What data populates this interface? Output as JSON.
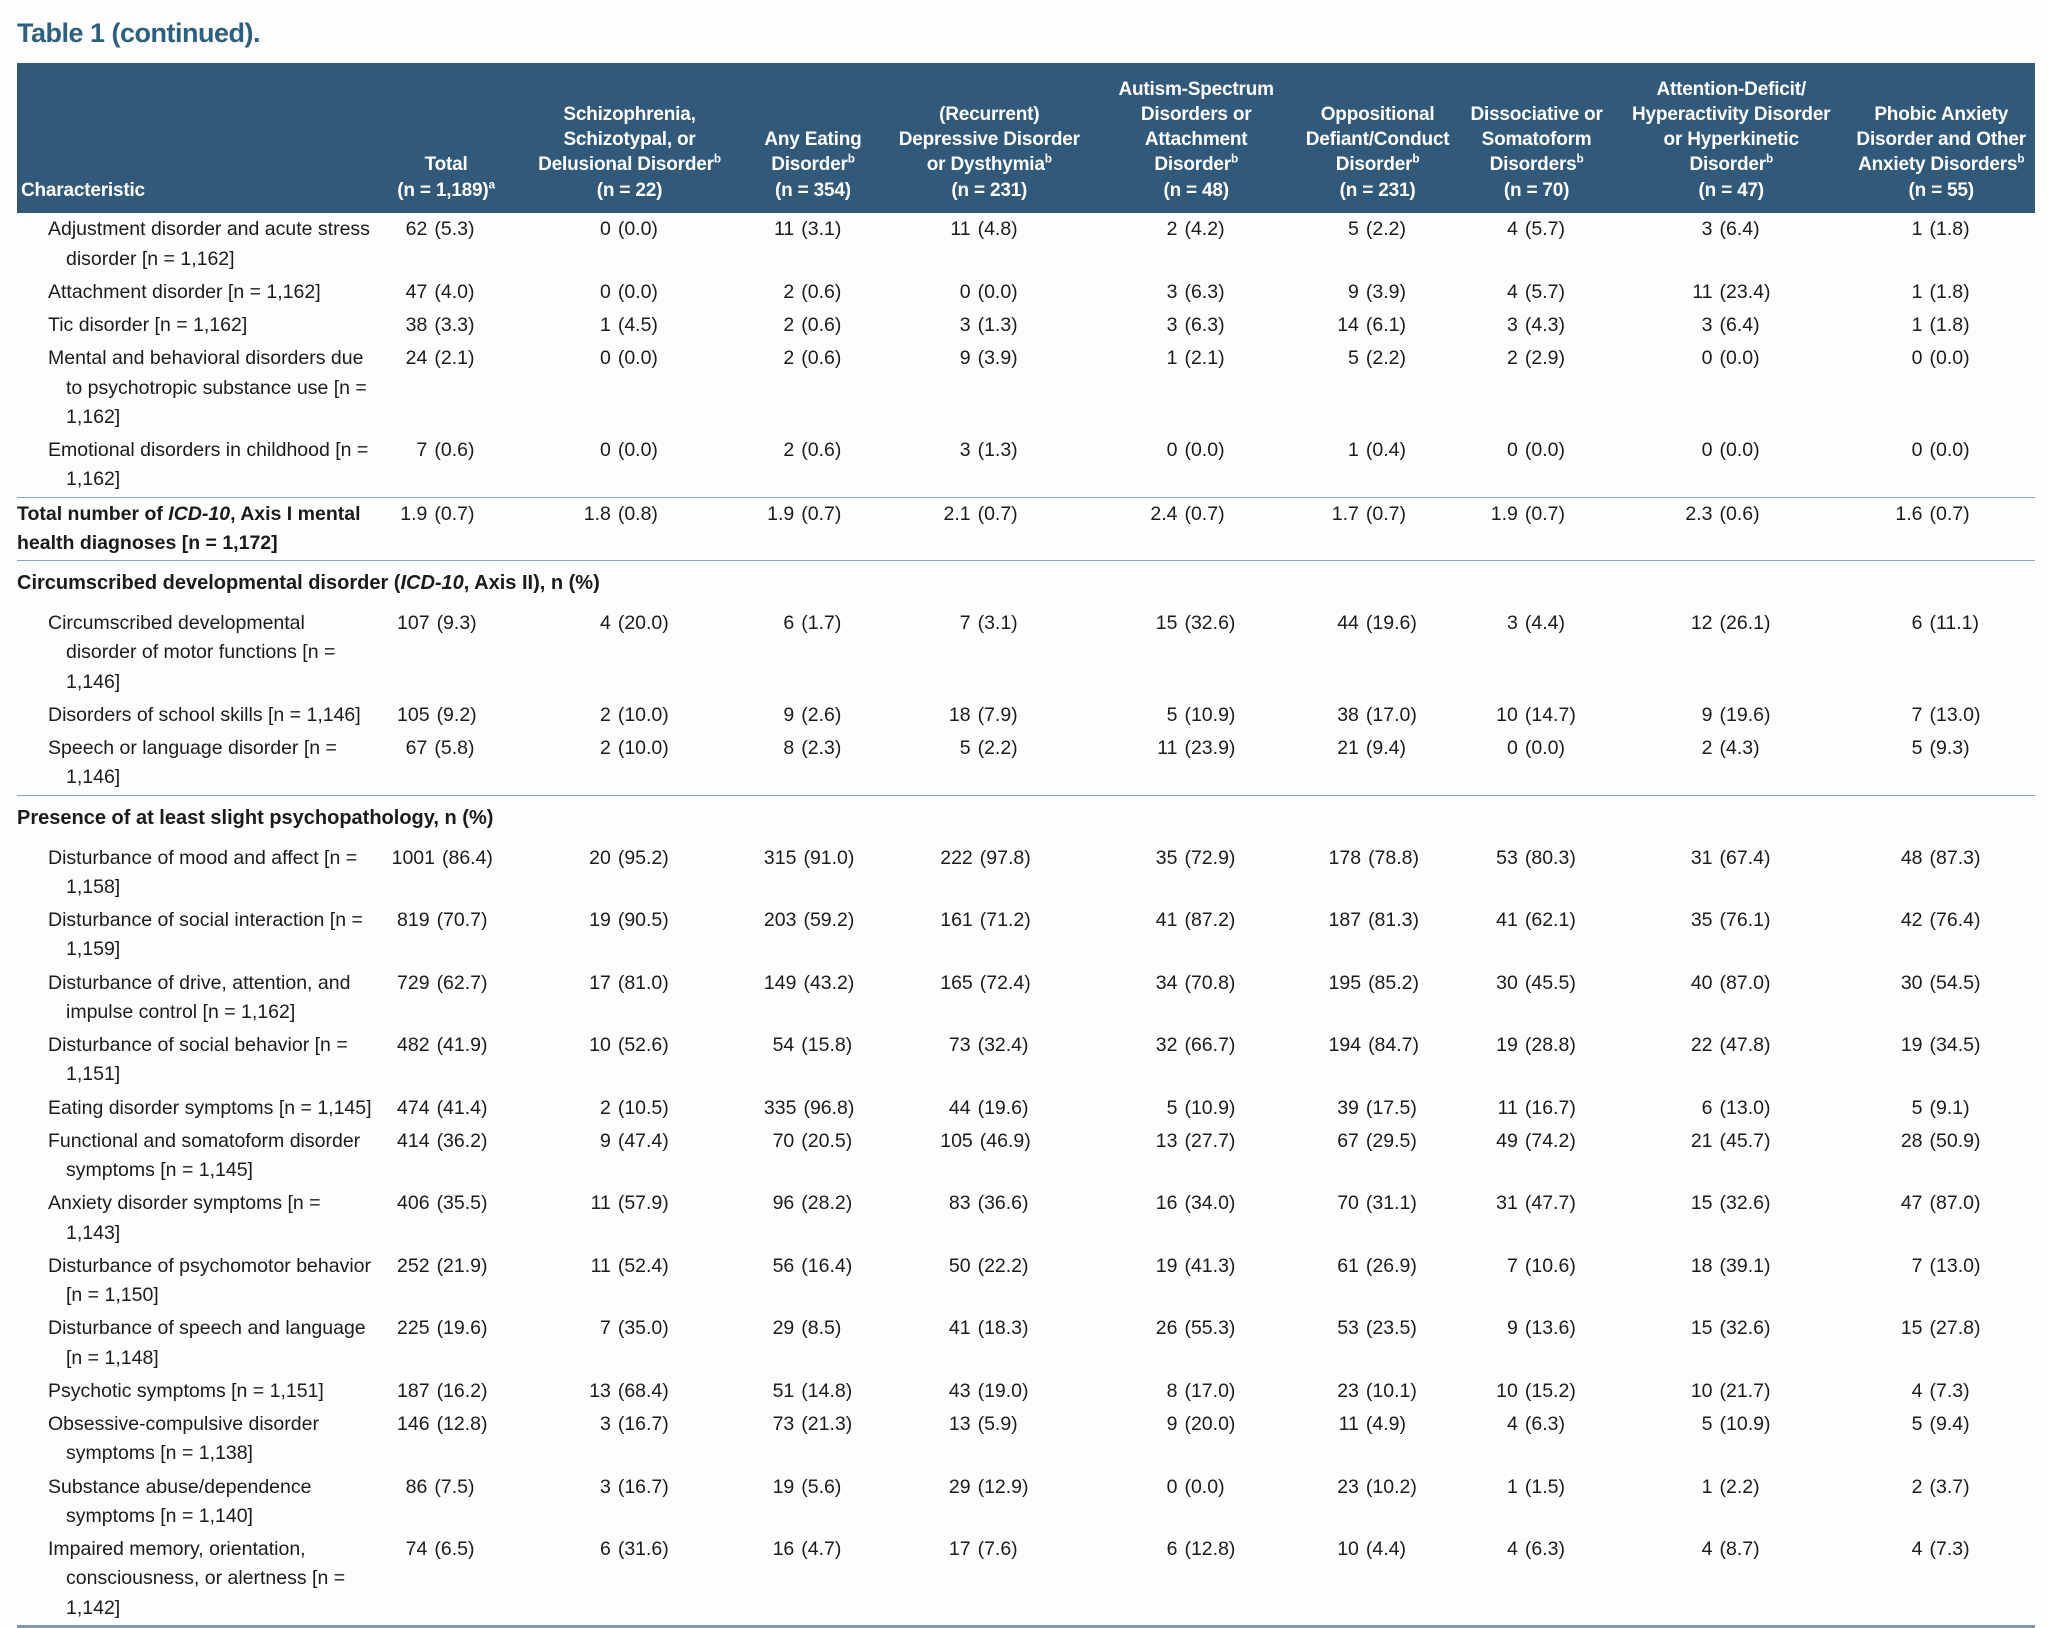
{
  "title": "Table 1 (continued).",
  "colors": {
    "header_bg": "#30597a",
    "title_text": "#2b607f",
    "rule": "#8ba6bb",
    "bottom_rule": "#7b99b0",
    "body_text": "#1b1b1b"
  },
  "table": {
    "characteristic_header": "Characteristic",
    "columns": [
      {
        "label": "Total",
        "sup": "",
        "n": "(n = 1,189)",
        "n_sup": "a"
      },
      {
        "label": "Schizophrenia, Schizotypal, or Delusional Disorder",
        "sup": "b",
        "n": "(n = 22)",
        "n_sup": ""
      },
      {
        "label": "Any Eating Disorder",
        "sup": "b",
        "n": "(n = 354)",
        "n_sup": ""
      },
      {
        "label": "(Recurrent) Depressive Disorder or Dysthymia",
        "sup": "b",
        "n": "(n = 231)",
        "n_sup": ""
      },
      {
        "label": "Autism-Spectrum Disorders or Attachment Disorder",
        "sup": "b",
        "n": "(n = 48)",
        "n_sup": ""
      },
      {
        "label": "Oppositional Defiant/Conduct Disorder",
        "sup": "b",
        "n": "(n = 231)",
        "n_sup": ""
      },
      {
        "label": "Dissociative or Somatoform Disorders",
        "sup": "b",
        "n": "(n = 70)",
        "n_sup": ""
      },
      {
        "label": "Attention-Deficit/ Hyperactivity Disorder or Hyperkinetic Disorder",
        "sup": "b",
        "n": "(n = 47)",
        "n_sup": ""
      },
      {
        "label": "Phobic Anxiety Disorder and Other Anxiety Disorders",
        "sup": "b",
        "n": "(n = 55)",
        "n_sup": ""
      }
    ],
    "sections": [
      {
        "header": null,
        "rule_above": false,
        "rows": [
          {
            "label": "Adjustment disorder and acute stress disorder [n = 1,162]",
            "values": [
              "62 (5.3)",
              "0 (0.0)",
              "11 (3.1)",
              "11 (4.8)",
              "2 (4.2)",
              "5 (2.2)",
              "4 (5.7)",
              "3 (6.4)",
              "1 (1.8)"
            ]
          },
          {
            "label": "Attachment disorder [n = 1,162]",
            "values": [
              "47 (4.0)",
              "0 (0.0)",
              "2 (0.6)",
              "0 (0.0)",
              "3 (6.3)",
              "9 (3.9)",
              "4 (5.7)",
              "11 (23.4)",
              "1 (1.8)"
            ]
          },
          {
            "label": "Tic disorder [n = 1,162]",
            "values": [
              "38 (3.3)",
              "1 (4.5)",
              "2 (0.6)",
              "3 (1.3)",
              "3 (6.3)",
              "14 (6.1)",
              "3 (4.3)",
              "3 (6.4)",
              "1 (1.8)"
            ]
          },
          {
            "label": "Mental and behavioral disorders due to psychotropic substance use [n = 1,162]",
            "values": [
              "24 (2.1)",
              "0 (0.0)",
              "2 (0.6)",
              "9 (3.9)",
              "1 (2.1)",
              "5 (2.2)",
              "2 (2.9)",
              "0 (0.0)",
              "0 (0.0)"
            ]
          },
          {
            "label": "Emotional disorders in childhood [n = 1,162]",
            "values": [
              "7 (0.6)",
              "0 (0.0)",
              "2 (0.6)",
              "3 (1.3)",
              "0 (0.0)",
              "1 (0.4)",
              "0 (0.0)",
              "0 (0.0)",
              "0 (0.0)"
            ]
          }
        ]
      },
      {
        "header": null,
        "rule_above": true,
        "rows": [
          {
            "label": "Total number of ICD-10, Axis I mental health diagnoses [n = 1,172]",
            "flush": true,
            "values": [
              "1.9 (0.7)",
              "1.8 (0.8)",
              "1.9 (0.7)",
              "2.1 (0.7)",
              "2.4 (0.7)",
              "1.7 (0.7)",
              "1.9 (0.7)",
              "2.3 (0.6)",
              "1.6 (0.7)"
            ]
          }
        ]
      },
      {
        "header": "Circumscribed developmental disorder (ICD-10, Axis II), n (%)",
        "rule_above": true,
        "rows": [
          {
            "label": "Circumscribed developmental disorder of motor functions [n = 1,146]",
            "values": [
              "107 (9.3)",
              "4 (20.0)",
              "6 (1.7)",
              "7 (3.1)",
              "15 (32.6)",
              "44 (19.6)",
              "3 (4.4)",
              "12 (26.1)",
              "6 (11.1)"
            ]
          },
          {
            "label": "Disorders of school skills [n = 1,146]",
            "values": [
              "105 (9.2)",
              "2 (10.0)",
              "9 (2.6)",
              "18 (7.9)",
              "5 (10.9)",
              "38 (17.0)",
              "10 (14.7)",
              "9 (19.6)",
              "7 (13.0)"
            ]
          },
          {
            "label": "Speech or language disorder [n = 1,146]",
            "values": [
              "67 (5.8)",
              "2 (10.0)",
              "8 (2.3)",
              "5 (2.2)",
              "11 (23.9)",
              "21 (9.4)",
              "0 (0.0)",
              "2 (4.3)",
              "5 (9.3)"
            ]
          }
        ]
      },
      {
        "header": "Presence of at least slight psychopathology, n (%)",
        "rule_above": true,
        "rows": [
          {
            "label": "Disturbance of mood and affect [n = 1,158]",
            "values": [
              "1001 (86.4)",
              "20 (95.2)",
              "315 (91.0)",
              "222 (97.8)",
              "35 (72.9)",
              "178 (78.8)",
              "53 (80.3)",
              "31 (67.4)",
              "48 (87.3)"
            ]
          },
          {
            "label": "Disturbance of social interaction [n = 1,159]",
            "values": [
              "819 (70.7)",
              "19 (90.5)",
              "203 (59.2)",
              "161 (71.2)",
              "41 (87.2)",
              "187 (81.3)",
              "41 (62.1)",
              "35 (76.1)",
              "42 (76.4)"
            ]
          },
          {
            "label": "Disturbance of drive, attention, and impulse control [n = 1,162]",
            "values": [
              "729 (62.7)",
              "17 (81.0)",
              "149 (43.2)",
              "165 (72.4)",
              "34 (70.8)",
              "195 (85.2)",
              "30 (45.5)",
              "40 (87.0)",
              "30 (54.5)"
            ]
          },
          {
            "label": "Disturbance of social behavior [n = 1,151]",
            "values": [
              "482 (41.9)",
              "10 (52.6)",
              "54 (15.8)",
              "73 (32.4)",
              "32 (66.7)",
              "194 (84.7)",
              "19 (28.8)",
              "22 (47.8)",
              "19 (34.5)"
            ]
          },
          {
            "label": "Eating disorder symptoms [n = 1,145]",
            "values": [
              "474 (41.4)",
              "2 (10.5)",
              "335 (96.8)",
              "44 (19.6)",
              "5 (10.9)",
              "39 (17.5)",
              "11 (16.7)",
              "6 (13.0)",
              "5 (9.1)"
            ]
          },
          {
            "label": "Functional and somatoform disorder symptoms [n = 1,145]",
            "values": [
              "414 (36.2)",
              "9 (47.4)",
              "70 (20.5)",
              "105 (46.9)",
              "13 (27.7)",
              "67 (29.5)",
              "49 (74.2)",
              "21 (45.7)",
              "28 (50.9)"
            ]
          },
          {
            "label": "Anxiety disorder symptoms [n = 1,143]",
            "values": [
              "406 (35.5)",
              "11 (57.9)",
              "96 (28.2)",
              "83 (36.6)",
              "16 (34.0)",
              "70 (31.1)",
              "31 (47.7)",
              "15 (32.6)",
              "47 (87.0)"
            ]
          },
          {
            "label": "Disturbance of psychomotor behavior [n = 1,150]",
            "values": [
              "252 (21.9)",
              "11 (52.4)",
              "56 (16.4)",
              "50 (22.2)",
              "19 (41.3)",
              "61 (26.9)",
              "7 (10.6)",
              "18 (39.1)",
              "7 (13.0)"
            ]
          },
          {
            "label": "Disturbance of speech and language [n = 1,148]",
            "values": [
              "225 (19.6)",
              "7 (35.0)",
              "29 (8.5)",
              "41 (18.3)",
              "26 (55.3)",
              "53 (23.5)",
              "9 (13.6)",
              "15 (32.6)",
              "15 (27.8)"
            ]
          },
          {
            "label": "Psychotic symptoms [n = 1,151]",
            "values": [
              "187 (16.2)",
              "13 (68.4)",
              "51 (14.8)",
              "43 (19.0)",
              "8 (17.0)",
              "23 (10.1)",
              "10 (15.2)",
              "10 (21.7)",
              "4 (7.3)"
            ]
          },
          {
            "label": "Obsessive-compulsive disorder symptoms [n = 1,138]",
            "values": [
              "146 (12.8)",
              "3 (16.7)",
              "73 (21.3)",
              "13 (5.9)",
              "9 (20.0)",
              "11 (4.9)",
              "4 (6.3)",
              "5 (10.9)",
              "5 (9.4)"
            ]
          },
          {
            "label": "Substance abuse/dependence symptoms [n = 1,140]",
            "values": [
              "86 (7.5)",
              "3 (16.7)",
              "19 (5.6)",
              "29 (12.9)",
              "0 (0.0)",
              "23 (10.2)",
              "1 (1.5)",
              "1 (2.2)",
              "2 (3.7)"
            ]
          },
          {
            "label": "Impaired memory, orientation, consciousness, or alertness [n = 1,142]",
            "values": [
              "74 (6.5)",
              "6 (31.6)",
              "16 (4.7)",
              "17 (7.6)",
              "6 (12.8)",
              "10 (4.4)",
              "4 (6.3)",
              "4 (8.7)",
              "4 (7.3)"
            ]
          }
        ]
      }
    ]
  }
}
